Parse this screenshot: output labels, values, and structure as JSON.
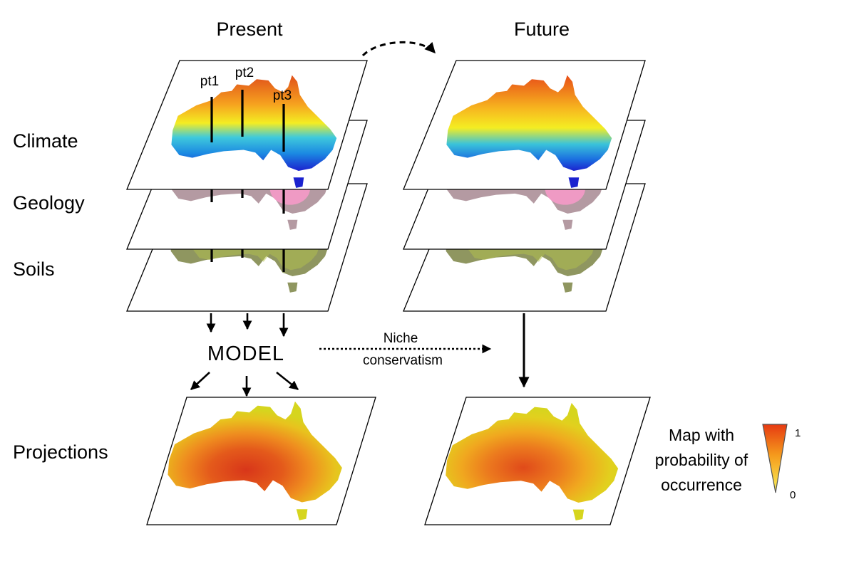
{
  "columns": {
    "present": "Present",
    "future": "Future"
  },
  "layers": {
    "climate": "Climate",
    "geology": "Geology",
    "soils": "Soils",
    "projections": "Projections"
  },
  "points": [
    "pt1",
    "pt2",
    "pt3"
  ],
  "model_label": "MODEL",
  "niche": {
    "line1": "Niche",
    "line2": "conservatism"
  },
  "legend": {
    "line1": "Map with",
    "line2": "probability of",
    "line3": "occurrence",
    "max": "1",
    "min": "0"
  },
  "colors": {
    "climate_hot": "#e8561a",
    "climate_warm": "#f7e21c",
    "climate_mid": "#39c8dd",
    "climate_cold": "#1e2fd6",
    "geology_bg": "#b59aa0",
    "geology_pink": "#ef9ac4",
    "soils_bg": "#8f9660",
    "soils_green": "#b6c64a",
    "prob_high": "#d8431a",
    "prob_mid": "#ec7a1e",
    "prob_low": "#d9d91e"
  }
}
